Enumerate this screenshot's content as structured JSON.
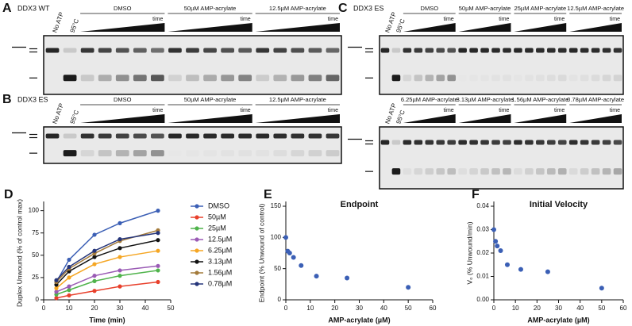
{
  "panels": [
    {
      "letter": "A",
      "title": "DDX3 WT",
      "lanes": [
        "No ATP",
        "95°C"
      ],
      "groups": [
        "DMSO",
        "50µM AMP-acrylate",
        "12.5µM AMP-acrylate"
      ],
      "time": "time"
    },
    {
      "letter": "B",
      "title": "DDX3 ES",
      "lanes": [
        "No ATP",
        "95°C"
      ],
      "groups": [
        "DMSO",
        "50µM AMP-acrylate",
        "12.5µM AMP-acrylate"
      ],
      "time": "time"
    },
    {
      "letter": "C",
      "title": "DDX3 ES",
      "lanes": [
        "No ATP",
        "95°C"
      ],
      "groups": [
        "DMSO",
        "50µM AMP-acrylate",
        "25µM AMP-acrylate",
        "12.5µM AMP-acrylate"
      ],
      "time": "time"
    },
    {
      "lanes": [
        "No ATP",
        "95°C"
      ],
      "groups": [
        "6.25µM AMP-acrylate",
        "3.13µM AMP-acrylate",
        "1.56µM AMP-acrylate",
        "0.78µM AMP-acrylate"
      ],
      "time": "time"
    }
  ],
  "chart_data": [
    {
      "type": "line",
      "letter": "D",
      "x_label": "Time (min)",
      "y_label": "Duplex Unwound (% of control max)",
      "x": [
        5,
        10,
        20,
        30,
        45
      ],
      "xlim": [
        0,
        50
      ],
      "xticks": [
        0,
        10,
        20,
        30,
        40,
        50
      ],
      "ylim": [
        0,
        105
      ],
      "yticks": [
        0,
        25,
        50,
        75,
        100
      ],
      "series": [
        {
          "name": "DMSO",
          "color": "#3b5fb5",
          "values": [
            20,
            45,
            73,
            86,
            100
          ]
        },
        {
          "name": "50µM",
          "color": "#e8402c",
          "values": [
            2,
            5,
            10,
            15,
            20
          ]
        },
        {
          "name": "25µM",
          "color": "#4fb34b",
          "values": [
            6,
            11,
            21,
            27,
            33
          ]
        },
        {
          "name": "12.5µM",
          "color": "#9a5bb5",
          "values": [
            9,
            15,
            27,
            33,
            38
          ]
        },
        {
          "name": "6.25µM",
          "color": "#f5a623",
          "values": [
            13,
            25,
            40,
            48,
            55
          ]
        },
        {
          "name": "3.13µM",
          "color": "#111111",
          "values": [
            17,
            32,
            48,
            58,
            67
          ]
        },
        {
          "name": "1.56µM",
          "color": "#a37a3a",
          "values": [
            20,
            35,
            52,
            66,
            78
          ]
        },
        {
          "name": "0.78µM",
          "color": "#25357a",
          "values": [
            22,
            37,
            55,
            68,
            75
          ]
        }
      ]
    },
    {
      "type": "scatter",
      "letter": "E",
      "title": "Endpoint",
      "x_label": "AMP-acrylate (µM)",
      "y_label": "Endpoint (% Unwound of control)",
      "color": "#3b5fb5",
      "x": [
        0,
        0.78,
        1.56,
        3.13,
        6.25,
        12.5,
        25,
        50
      ],
      "values": [
        100,
        78,
        75,
        68,
        55,
        38,
        35,
        20
      ],
      "xlim": [
        0,
        60
      ],
      "xticks": [
        0,
        10,
        20,
        30,
        40,
        50,
        60
      ],
      "ylim": [
        0,
        150
      ],
      "yticks": [
        0,
        50,
        100,
        150
      ]
    },
    {
      "type": "scatter",
      "letter": "F",
      "title": "Initial Velocity",
      "x_label": "AMP-acrylate (µM)",
      "y_label": "V₀ (% Unwound/min)",
      "color": "#3b5fb5",
      "x": [
        0,
        0.78,
        1.56,
        3.13,
        6.25,
        12.5,
        25,
        50
      ],
      "values": [
        0.03,
        0.025,
        0.023,
        0.021,
        0.015,
        0.013,
        0.012,
        0.005
      ],
      "xlim": [
        0,
        60
      ],
      "xticks": [
        0,
        10,
        20,
        30,
        40,
        50,
        60
      ],
      "ylim": [
        0,
        0.04
      ],
      "yticks": [
        {
          "value": 0,
          "label": "0.00"
        },
        0.01,
        0.02,
        0.03,
        0.04
      ]
    }
  ]
}
